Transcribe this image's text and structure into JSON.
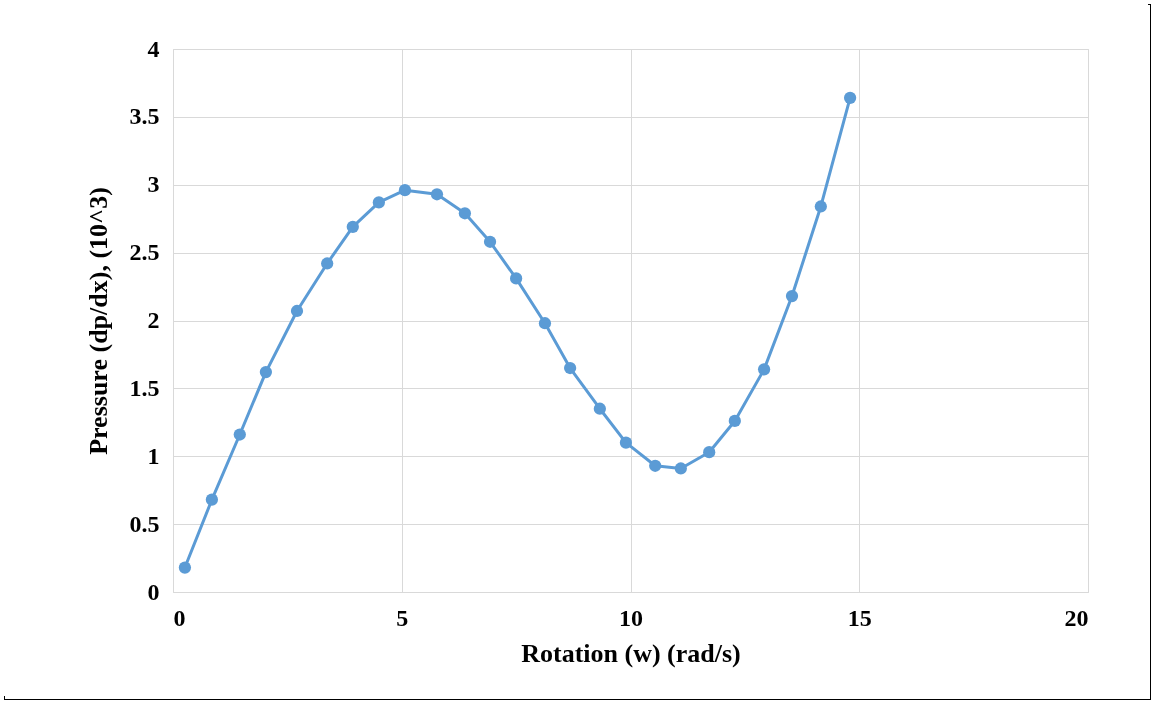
{
  "chart_data": {
    "type": "line",
    "xlabel": "Rotation (w) (rad/s)",
    "ylabel": "Pressure (dp/dx), (10^3)",
    "x": [
      0.26,
      0.85,
      1.46,
      2.03,
      2.71,
      3.37,
      3.93,
      4.5,
      5.07,
      5.77,
      6.38,
      6.93,
      7.5,
      8.13,
      8.68,
      9.33,
      9.9,
      10.54,
      11.1,
      11.72,
      12.28,
      12.92,
      13.53,
      14.16,
      14.8
    ],
    "series": [
      {
        "color": "#5b9bd5",
        "values": [
          0.18,
          0.68,
          1.16,
          1.62,
          2.07,
          2.42,
          2.69,
          2.87,
          2.96,
          2.93,
          2.79,
          2.58,
          2.31,
          1.98,
          1.65,
          1.35,
          1.1,
          0.93,
          0.91,
          1.03,
          1.26,
          1.64,
          2.18,
          2.84,
          3.64
        ]
      }
    ],
    "xlim": [
      0,
      20
    ],
    "xticks": [
      0,
      5,
      10,
      15,
      20
    ],
    "ylim": [
      0,
      4
    ],
    "yticks": [
      0,
      0.5,
      1,
      1.5,
      2,
      2.5,
      3,
      3.5,
      4
    ],
    "grid": true,
    "marker": "circle",
    "line_style": "solid",
    "legend": false
  }
}
